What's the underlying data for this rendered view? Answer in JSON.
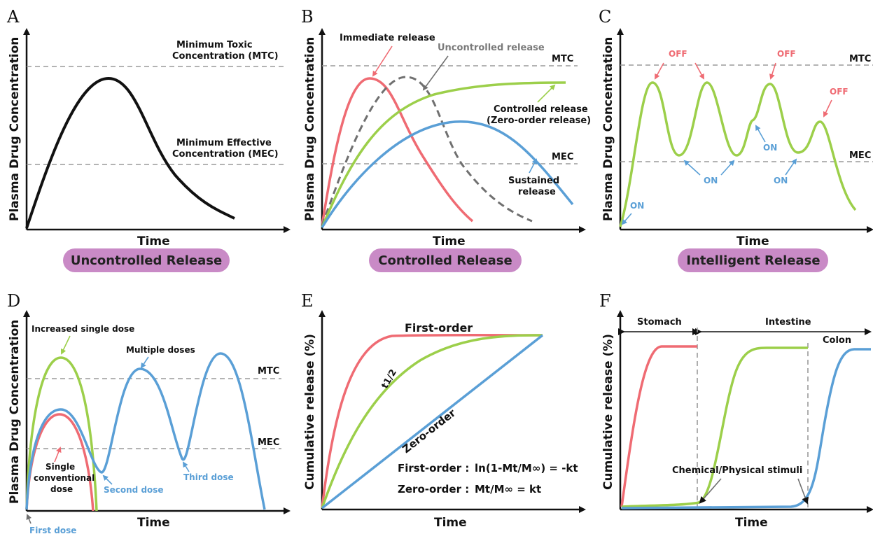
{
  "panels": {
    "A": {
      "letter": "A",
      "ylabel": "Plasma Drug Concentration",
      "xlabel": "Time",
      "mtc_line1": "Minimum Toxic",
      "mtc_line2": "Concentration (MTC)",
      "mec_line1": "Minimum Effective",
      "mec_line2": "Concentration (MEC)",
      "badge": "Uncontrolled Release"
    },
    "B": {
      "letter": "B",
      "ylabel": "Plasma Drug Concentration",
      "xlabel": "Time",
      "mtc": "MTC",
      "mec": "MEC",
      "immediate": "Immediate release",
      "uncontrolled": "Uncontrolled release",
      "controlled_line1": "Controlled release",
      "controlled_line2": "(Zero-order release)",
      "sustained_line1": "Sustained",
      "sustained_line2": "release",
      "badge": "Controlled Release"
    },
    "C": {
      "letter": "C",
      "ylabel": "Plasma Drug Concentration",
      "xlabel": "Time",
      "mtc": "MTC",
      "mec": "MEC",
      "off": "OFF",
      "on": "ON",
      "badge": "Intelligent Release"
    },
    "D": {
      "letter": "D",
      "ylabel": "Plasma Drug Concentration",
      "xlabel": "Time",
      "mtc": "MTC",
      "mec": "MEC",
      "increased": "Increased single dose",
      "multiple": "Multiple doses",
      "single_line1": "Single",
      "single_line2": "conventional",
      "single_line3": "dose",
      "second": "Second dose",
      "third": "Third dose",
      "first": "First dose"
    },
    "E": {
      "letter": "E",
      "ylabel": "Cumulative release (%)",
      "xlabel": "Time",
      "first_order": "First-order",
      "zero_order": "Zero-order",
      "t_half": "t1/2",
      "eq1_label": "First-order :",
      "eq1": "ln(1-Mt/M∞) = -kt",
      "eq2_label": "Zero-order :",
      "eq2": "Mt/M∞ = kt"
    },
    "F": {
      "letter": "F",
      "ylabel": "Cumulative release (%)",
      "xlabel": "Time",
      "stomach": "Stomach",
      "intestine": "Intestine",
      "colon": "Colon",
      "stimuli": "Chemical/Physical stimuli"
    }
  },
  "colors": {
    "red": "#ef6b73",
    "green": "#9ccf4a",
    "blue": "#5a9fd6",
    "badge": "#c98ac6",
    "dashed": "#9a9a9a"
  }
}
